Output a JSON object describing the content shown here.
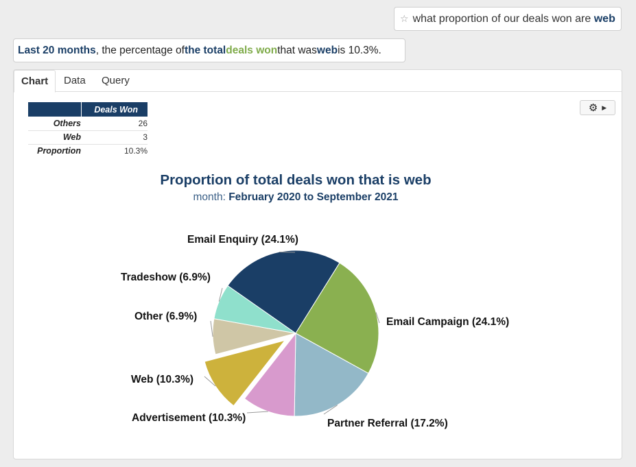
{
  "query": {
    "star_icon": "star-outline-icon",
    "prefix": "what proportion of our deals won are ",
    "highlight": "web"
  },
  "answer": {
    "p1": "Last 20 months",
    "p2": ", the percentage of ",
    "p3": "the total",
    "p4": " ",
    "p5": "deals won",
    "p6": " that was ",
    "p7": "web",
    "p8": " is 10.3%."
  },
  "tabs": [
    {
      "label": "Chart"
    },
    {
      "label": "Data"
    },
    {
      "label": "Query"
    }
  ],
  "settings": {
    "icon": "gear-icon",
    "caret": "caret-right-icon"
  },
  "summary_table": {
    "header": "Deals Won",
    "rows": [
      {
        "label": "Others",
        "value": "26"
      },
      {
        "label": "Web",
        "value": "3"
      },
      {
        "label": "Proportion",
        "value": "10.3%"
      }
    ]
  },
  "chart_data": {
    "type": "pie",
    "title": "Proportion of total deals won that is web",
    "subtitle_label": "month: ",
    "subtitle_value": "February 2020 to September 2021",
    "slices": [
      {
        "name": "Email Enquiry",
        "label": "Email Enquiry (24.1%)",
        "value": 24.1,
        "color": "#1a3e66",
        "exploded": false
      },
      {
        "name": "Email Campaign",
        "label": "Email Campaign (24.1%)",
        "value": 24.1,
        "color": "#8ab050",
        "exploded": false
      },
      {
        "name": "Partner Referral",
        "label": "Partner Referral (17.2%)",
        "value": 17.2,
        "color": "#93b8c8",
        "exploded": false
      },
      {
        "name": "Advertisement",
        "label": "Advertisement (10.3%)",
        "value": 10.3,
        "color": "#d89acd",
        "exploded": false
      },
      {
        "name": "Web",
        "label": "Web (10.3%)",
        "value": 10.3,
        "color": "#cdb23c",
        "exploded": true
      },
      {
        "name": "Other",
        "label": "Other (6.9%)",
        "value": 6.9,
        "color": "#cfc6a6",
        "exploded": false
      },
      {
        "name": "Tradeshow",
        "label": "Tradeshow (6.9%)",
        "value": 6.9,
        "color": "#8fe0cc",
        "exploded": false
      }
    ]
  }
}
